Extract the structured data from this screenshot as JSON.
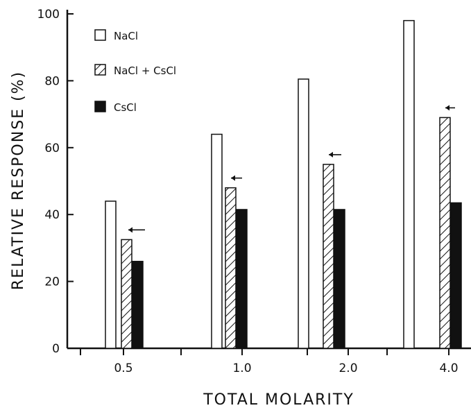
{
  "chart_data": {
    "type": "bar",
    "title": "",
    "xlabel": "TOTAL MOLARITY",
    "ylabel": "RELATIVE RESPONSE (%)",
    "categories": [
      "0.5",
      "1.0",
      "2.0",
      "4.0"
    ],
    "ylim": [
      0,
      100
    ],
    "yticks": [
      "0",
      "20",
      "40",
      "60",
      "80",
      "100"
    ],
    "series": [
      {
        "name": "NaCl",
        "values": [
          44,
          64,
          80.5,
          98
        ],
        "fill": "open",
        "color": "#ffffff"
      },
      {
        "name": "NaCl + CsCl",
        "values": [
          32.5,
          48,
          55,
          69
        ],
        "fill": "hatched",
        "color": "#ffffff"
      },
      {
        "name": "CsCl",
        "values": [
          26,
          41.5,
          41.5,
          43.5
        ],
        "fill": "solid",
        "color": "#111111"
      }
    ],
    "annotations": [
      {
        "type": "arrow",
        "direction": "left",
        "category": "0.5"
      },
      {
        "type": "arrow",
        "direction": "left",
        "category": "1.0"
      },
      {
        "type": "arrow",
        "direction": "left",
        "category": "2.0"
      },
      {
        "type": "arrow",
        "direction": "left",
        "category": "4.0"
      }
    ],
    "legend_position": "top-left",
    "grid": false
  }
}
